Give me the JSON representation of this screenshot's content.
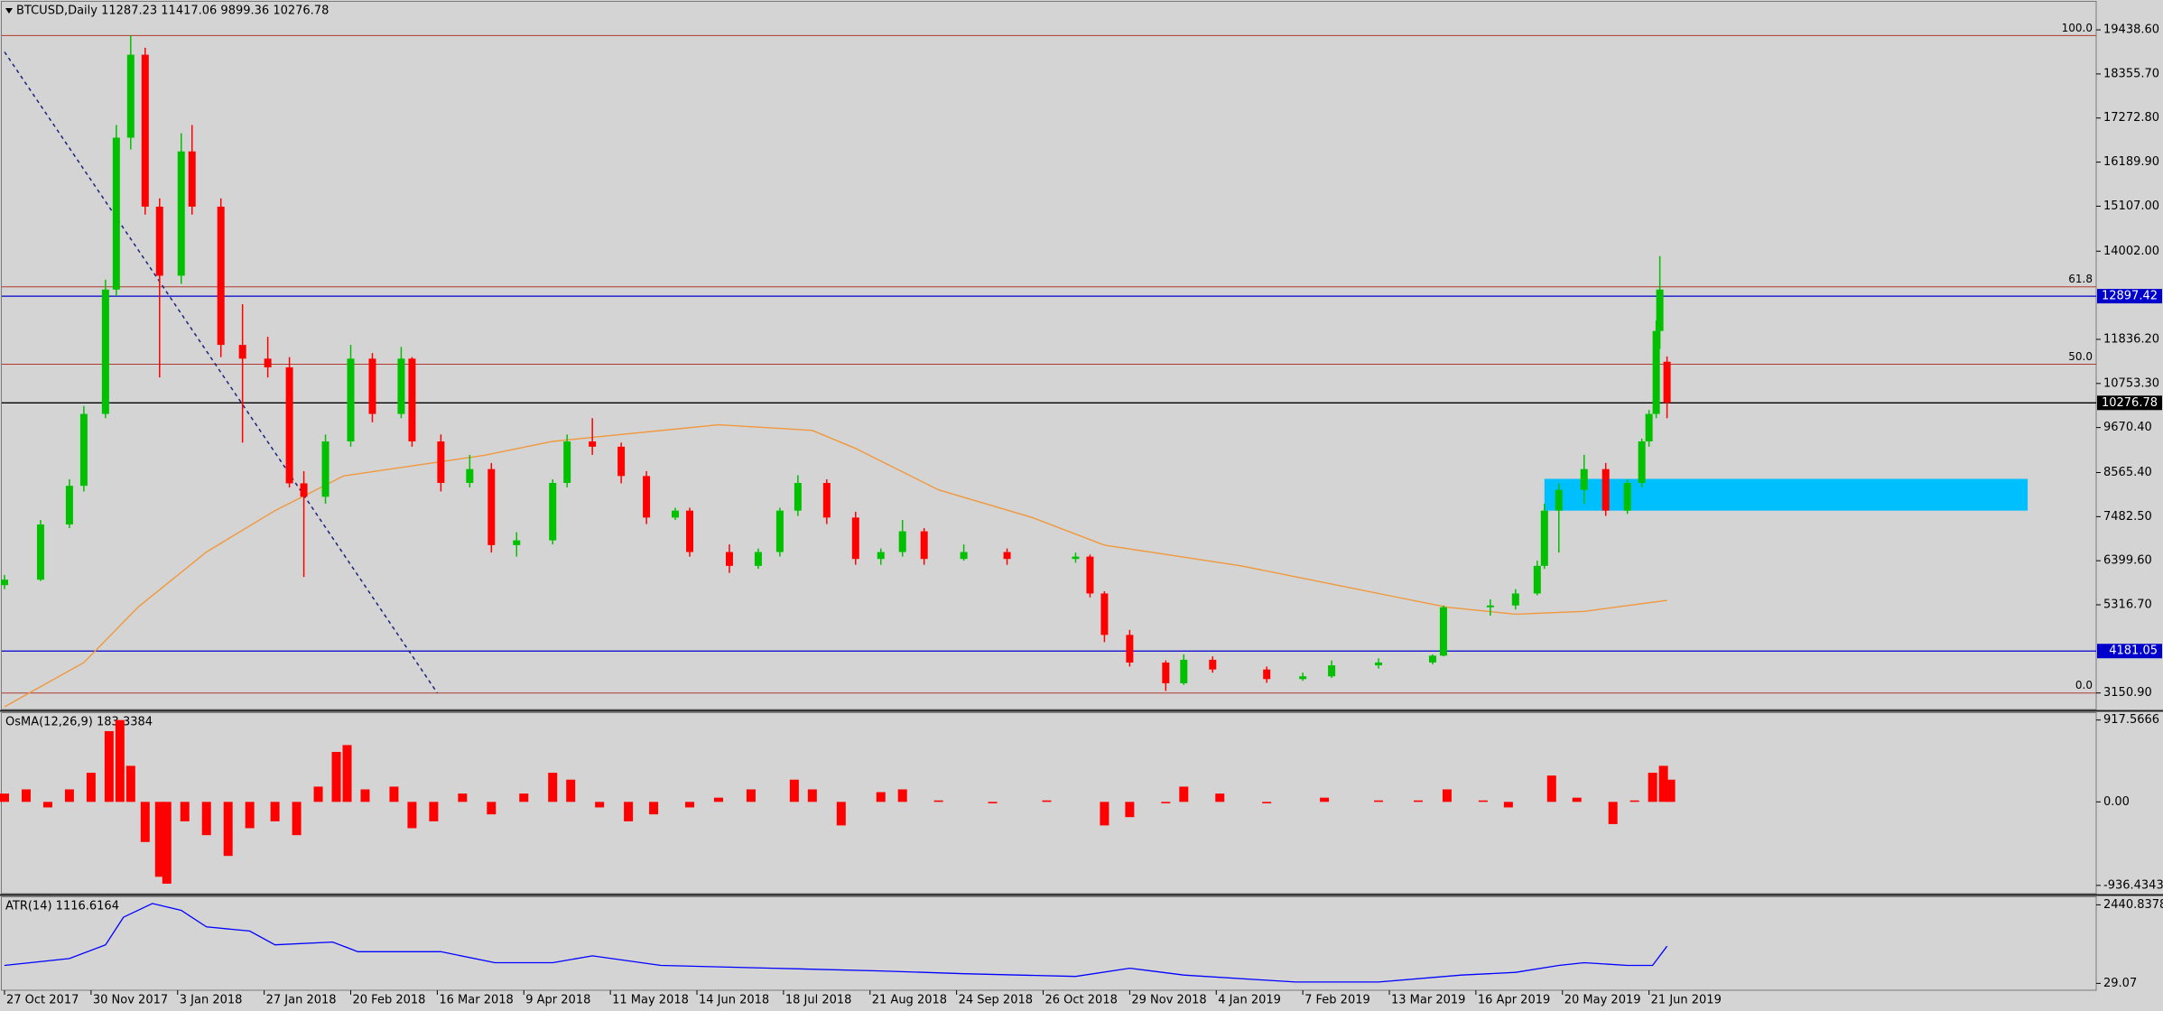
{
  "chart_data": [
    {
      "type": "candlestick",
      "title": "BTCUSD,Daily  11287.23 11417.06 9899.36 10276.78",
      "xlim": [
        0,
        580
      ],
      "ylim": [
        2745,
        20083
      ],
      "yticks": [
        {
          "value": 19438.6,
          "label": "19438.60"
        },
        {
          "value": 18355.7,
          "label": "18355.70"
        },
        {
          "value": 17272.8,
          "label": "17272.80"
        },
        {
          "value": 16189.9,
          "label": "16189.90"
        },
        {
          "value": 15107,
          "label": "15107.00"
        },
        {
          "value": 14002,
          "label": "14002.00"
        },
        {
          "value": 11836.2,
          "label": "11836.20"
        },
        {
          "value": 10753.3,
          "label": "10753.30"
        },
        {
          "value": 9670.4,
          "label": "9670.40"
        },
        {
          "value": 8565.4,
          "label": "8565.40"
        },
        {
          "value": 7482.5,
          "label": "7482.50"
        },
        {
          "value": 6399.6,
          "label": "6399.60"
        },
        {
          "value": 5316.7,
          "label": "5316.70"
        },
        {
          "value": 3150.9,
          "label": "3150.90"
        }
      ],
      "up_color": "#00c000",
      "down_color": "#ff0000",
      "x": [
        0,
        10,
        18,
        22,
        28,
        31,
        35,
        39,
        43,
        49,
        52,
        60,
        66,
        73,
        79,
        83,
        89,
        96,
        102,
        110,
        113,
        121,
        129,
        135,
        142,
        152,
        156,
        163,
        171,
        178,
        186,
        190,
        201,
        209,
        215,
        220,
        228,
        236,
        243,
        249,
        255,
        266,
        278,
        297,
        301,
        305,
        312,
        322,
        327,
        335,
        350,
        360,
        368,
        381,
        396,
        399,
        412,
        419,
        425,
        427,
        431,
        438,
        444,
        450,
        454,
        456,
        458,
        459,
        461
      ],
      "open": [
        5800,
        5934,
        7290,
        8240,
        10005,
        13060,
        16790,
        18828,
        15096,
        13400,
        16453,
        15096,
        11700,
        11363,
        11150,
        8300,
        7970,
        9330,
        11363,
        10005,
        11363,
        9330,
        8310,
        8650,
        6783,
        6900,
        8310,
        9330,
        9200,
        8480,
        7460,
        7630,
        6613,
        6273,
        6613,
        7630,
        8310,
        7460,
        6443,
        6613,
        7122,
        6443,
        6613,
        6443,
        6500,
        5595,
        4577,
        3898,
        3390,
        3966,
        3728,
        3492,
        3560,
        3830,
        3900,
        4068,
        5256,
        5300,
        5595,
        6273,
        7630,
        8140,
        8650,
        7630,
        8310,
        9330,
        10005,
        12042,
        11287.23
      ],
      "high": [
        6050,
        7400,
        8400,
        10200,
        13300,
        17100,
        19300,
        19000,
        15300,
        16900,
        17100,
        15300,
        12700,
        11900,
        11400,
        8600,
        9500,
        11700,
        11500,
        11650,
        11400,
        9500,
        9000,
        8800,
        7100,
        8400,
        9500,
        9900,
        9300,
        8600,
        7700,
        7700,
        6800,
        6700,
        7700,
        8500,
        8400,
        7600,
        6700,
        7400,
        7200,
        6800,
        6700,
        6600,
        6550,
        5650,
        4700,
        3950,
        4100,
        4050,
        3800,
        3650,
        3950,
        4000,
        4100,
        5300,
        5450,
        5700,
        6400,
        7800,
        8300,
        9000,
        8800,
        8400,
        9400,
        10100,
        12300,
        13880,
        11417.06
      ],
      "low": [
        5700,
        5900,
        7200,
        8100,
        9900,
        12900,
        16500,
        14900,
        10900,
        13200,
        14900,
        11400,
        9300,
        10900,
        8200,
        6000,
        7800,
        9200,
        9800,
        9900,
        9200,
        8100,
        8200,
        6600,
        6500,
        6800,
        8200,
        9000,
        8300,
        7300,
        7400,
        6500,
        6100,
        6200,
        6500,
        7500,
        7300,
        6300,
        6300,
        6500,
        6300,
        6400,
        6300,
        6350,
        5500,
        4400,
        3800,
        3200,
        3350,
        3650,
        3400,
        3450,
        3520,
        3750,
        3850,
        4050,
        5050,
        5200,
        5550,
        6200,
        6600,
        7800,
        7500,
        7550,
        8200,
        9200,
        9900,
        11600,
        9899.36
      ],
      "close": [
        5934,
        7290,
        8240,
        10005,
        13060,
        16790,
        18828,
        15096,
        13400,
        16453,
        15096,
        11700,
        11363,
        11150,
        8300,
        7970,
        9330,
        11363,
        10005,
        11363,
        9330,
        8310,
        8650,
        6783,
        6900,
        8310,
        9330,
        9200,
        8480,
        7460,
        7630,
        6613,
        6273,
        6613,
        7630,
        8310,
        7460,
        6443,
        6613,
        7122,
        6443,
        6613,
        6443,
        6500,
        5595,
        4577,
        3898,
        3390,
        3966,
        3728,
        3492,
        3560,
        3830,
        3900,
        4068,
        5256,
        5300,
        5595,
        6273,
        7630,
        8140,
        8650,
        7630,
        8310,
        9330,
        10005,
        12042,
        13060,
        10276.78
      ],
      "ma": {
        "color": "#f0983c",
        "x": [
          0,
          22,
          37,
          56,
          75,
          94,
          133,
          152,
          171,
          198,
          224,
          236,
          259,
          285,
          305,
          343,
          381,
          400,
          419,
          438,
          461
        ],
        "values": [
          2812,
          3898,
          5256,
          6613,
          7630,
          8480,
          8988,
          9330,
          9500,
          9737,
          9600,
          9157,
          8140,
          7460,
          6783,
          6273,
          5595,
          5256,
          5086,
          5154,
          5426
        ]
      },
      "trendline": {
        "color": "#1a237e",
        "x": [
          0,
          120
        ],
        "values": [
          18896,
          3150
        ]
      },
      "zone": {
        "color": "#00bfff",
        "x": [
          427,
          561
        ],
        "values": [
          7630,
          8410
        ]
      },
      "fib_color": "#b03a2e",
      "fib_levels": [
        {
          "label": "100.0",
          "price": 19300
        },
        {
          "label": "61.8",
          "price": 13128
        },
        {
          "label": "50.0",
          "price": 11225
        },
        {
          "label": "0.0",
          "price": 3150
        }
      ],
      "price_lines": [
        {
          "price": 12897.42,
          "color": "#0000cd"
        },
        {
          "price": 10276.78,
          "color": "#000000"
        },
        {
          "price": 4181.05,
          "color": "#0000cd"
        }
      ]
    },
    {
      "type": "bar",
      "title": "OsMA(12,26,9) 183.3384",
      "xlim": [
        0,
        580
      ],
      "ylim": [
        -1029,
        995
      ],
      "yticks": [
        917.5666,
        {
          "value": 0,
          "label": "0.00"
        },
        -936.4343
      ],
      "color": "#ff0000",
      "x": [
        0,
        6,
        12,
        18,
        24,
        29,
        32,
        35,
        39,
        43,
        45,
        50,
        56,
        62,
        68,
        75,
        81,
        87,
        92,
        95,
        100,
        108,
        113,
        119,
        127,
        135,
        144,
        152,
        157,
        165,
        173,
        180,
        190,
        198,
        207,
        219,
        224,
        232,
        243,
        249,
        259,
        274,
        289,
        305,
        312,
        322,
        327,
        337,
        350,
        366,
        381,
        392,
        400,
        410,
        417,
        429,
        436,
        446,
        452,
        457,
        460,
        462
      ],
      "values": [
        93,
        140,
        -62,
        140,
        326,
        793,
        917,
        404,
        -450,
        -840,
        -917,
        -218,
        -373,
        -606,
        -295,
        -218,
        -373,
        171,
        560,
        637,
        140,
        171,
        -295,
        -218,
        93,
        -140,
        93,
        326,
        249,
        -62,
        -218,
        -140,
        -62,
        47,
        140,
        249,
        140,
        -264,
        109,
        140,
        16,
        -16,
        16,
        -264,
        -171,
        -16,
        171,
        93,
        -16,
        47,
        16,
        16,
        140,
        16,
        -62,
        295,
        47,
        -249,
        16,
        326,
        404,
        249
      ]
    },
    {
      "type": "line",
      "title": "ATR(14) 1116.6164",
      "xlim": [
        0,
        580
      ],
      "ylim": [
        -182,
        2673
      ],
      "yticks": [
        2440.8378,
        29.07
      ],
      "xticks": [
        {
          "value": 0,
          "label": "27 Oct 2017"
        },
        {
          "value": 24,
          "label": "30 Nov 2017"
        },
        {
          "value": 48,
          "label": "3 Jan 2018"
        },
        {
          "value": 72,
          "label": "27 Jan 2018"
        },
        {
          "value": 96,
          "label": "20 Feb 2018"
        },
        {
          "value": 120,
          "label": "16 Mar 2018"
        },
        {
          "value": 144,
          "label": "9 Apr 2018"
        },
        {
          "value": 168,
          "label": "11 May 2018"
        },
        {
          "value": 192,
          "label": "14 Jun 2018"
        },
        {
          "value": 216,
          "label": "18 Jul 2018"
        },
        {
          "value": 240,
          "label": "21 Aug 2018"
        },
        {
          "value": 264,
          "label": "24 Sep 2018"
        },
        {
          "value": 288,
          "label": "26 Oct 2018"
        },
        {
          "value": 312,
          "label": "29 Nov 2018"
        },
        {
          "value": 336,
          "label": "4 Jan 2019"
        },
        {
          "value": 360,
          "label": "7 Feb 2019"
        },
        {
          "value": 384,
          "label": "13 Mar 2019"
        },
        {
          "value": 408,
          "label": "16 Apr 2019"
        },
        {
          "value": 432,
          "label": "20 May 2019"
        },
        {
          "value": 456,
          "label": "21 Jun 2019"
        }
      ],
      "color": "#0000ff",
      "x": [
        0,
        18,
        28,
        33,
        41,
        49,
        56,
        68,
        75,
        91,
        98,
        121,
        136,
        152,
        163,
        182,
        213,
        243,
        266,
        297,
        312,
        327,
        358,
        381,
        404,
        419,
        431,
        438,
        450,
        457,
        461
      ],
      "values": [
        579,
        790,
        1213,
        2060,
        2483,
        2271,
        1764,
        1637,
        1213,
        1298,
        1001,
        1001,
        663,
        663,
        874,
        579,
        494,
        410,
        325,
        241,
        494,
        283,
        71,
        71,
        283,
        367,
        579,
        663,
        579,
        579,
        1171
      ]
    }
  ]
}
